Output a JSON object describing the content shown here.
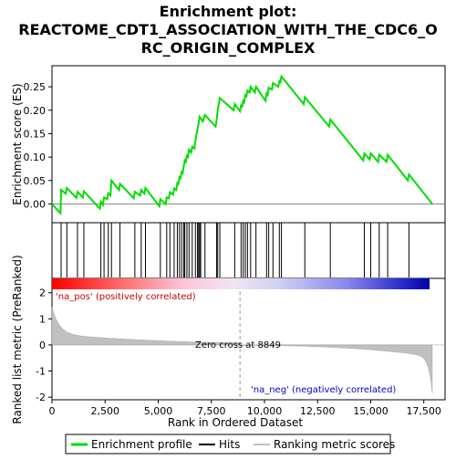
{
  "chart_data": {
    "type": "line",
    "title_lines": [
      "Enrichment plot:",
      "REACTOME_CDT1_ASSOCIATION_WITH_THE_CDC6_O",
      "RC_ORIGIN_COMPLEX"
    ],
    "top_ylabel": "Enrichment score (ES)",
    "bottom_ylabel": "Ranked list metric (PreRanked)",
    "xlabel": "Rank in Ordered Dataset",
    "xlim": [
      0,
      18500
    ],
    "top_ylim": [
      -0.04,
      0.295
    ],
    "bottom_ylim": [
      -2.1,
      2.55
    ],
    "x_ticks": [
      0,
      2500,
      5000,
      7500,
      10000,
      12500,
      15000,
      17500
    ],
    "x_tick_labels": [
      "0",
      "2,500",
      "5,000",
      "7,500",
      "10,000",
      "12,500",
      "15,000",
      "17,500"
    ],
    "top_y_ticks": [
      0.0,
      0.05,
      0.1,
      0.15,
      0.2,
      0.25
    ],
    "top_y_tick_labels": [
      "0.00",
      "0.05",
      "0.10",
      "0.15",
      "0.20",
      "0.25"
    ],
    "bottom_y_ticks": [
      -2,
      -1,
      0,
      1,
      2
    ],
    "bottom_y_tick_labels": [
      "-2",
      "-1",
      "0",
      "1",
      "2"
    ],
    "zero_cross": 8849,
    "zero_cross_label": "Zero cross at 8849",
    "pos_label": "'na_pos' (positively correlated)",
    "neg_label": "'na_neg' (negatively correlated)",
    "legend": [
      {
        "label": "Enrichment profile",
        "color": "#00dd00"
      },
      {
        "label": "Hits",
        "color": "#000000"
      },
      {
        "label": "Ranking metric scores",
        "color": "#c0c0c0"
      }
    ],
    "colors": {
      "es_line": "#00dd00",
      "hits": "#000000",
      "metric_fill": "#c0c0c0",
      "pos_text": "#cc0000",
      "neg_text": "#0000cc"
    },
    "hits": [
      430,
      700,
      1200,
      1500,
      2300,
      2450,
      2650,
      2800,
      3200,
      3900,
      4200,
      4400,
      5100,
      5400,
      5550,
      5750,
      5900,
      6000,
      6100,
      6200,
      6250,
      6350,
      6450,
      6600,
      6750,
      6850,
      6900,
      6950,
      7000,
      7200,
      7750,
      7800,
      7900,
      8600,
      8900,
      9000,
      9100,
      9200,
      9350,
      9600,
      10100,
      10200,
      10400,
      10700,
      10800,
      11900,
      13100,
      14700,
      15000,
      15400,
      15800,
      16800
    ],
    "es_points": [
      [
        0,
        0.0
      ],
      [
        400,
        -0.02
      ],
      [
        430,
        0.03
      ],
      [
        650,
        0.022
      ],
      [
        700,
        0.034
      ],
      [
        1150,
        0.013
      ],
      [
        1200,
        0.026
      ],
      [
        1450,
        0.014
      ],
      [
        1500,
        0.027
      ],
      [
        2250,
        -0.01
      ],
      [
        2300,
        0.005
      ],
      [
        2400,
        -0.002
      ],
      [
        2450,
        0.014
      ],
      [
        2600,
        0.01
      ],
      [
        2650,
        0.023
      ],
      [
        2750,
        0.018
      ],
      [
        2800,
        0.05
      ],
      [
        3150,
        0.03
      ],
      [
        3200,
        0.043
      ],
      [
        3850,
        0.012
      ],
      [
        3900,
        0.026
      ],
      [
        4150,
        0.018
      ],
      [
        4200,
        0.03
      ],
      [
        4350,
        0.022
      ],
      [
        4400,
        0.034
      ],
      [
        5050,
        -0.005
      ],
      [
        5100,
        0.01
      ],
      [
        5350,
        0.0
      ],
      [
        5400,
        0.014
      ],
      [
        5500,
        0.012
      ],
      [
        5550,
        0.025
      ],
      [
        5700,
        0.02
      ],
      [
        5750,
        0.033
      ],
      [
        5850,
        0.03
      ],
      [
        5900,
        0.045
      ],
      [
        5950,
        0.043
      ],
      [
        6000,
        0.057
      ],
      [
        6050,
        0.055
      ],
      [
        6100,
        0.068
      ],
      [
        6150,
        0.066
      ],
      [
        6200,
        0.08
      ],
      [
        6250,
        0.093
      ],
      [
        6300,
        0.09
      ],
      [
        6350,
        0.103
      ],
      [
        6400,
        0.1
      ],
      [
        6450,
        0.116
      ],
      [
        6550,
        0.11
      ],
      [
        6600,
        0.122
      ],
      [
        6700,
        0.118
      ],
      [
        6750,
        0.135
      ],
      [
        6800,
        0.148
      ],
      [
        6850,
        0.16
      ],
      [
        6900,
        0.172
      ],
      [
        6950,
        0.186
      ],
      [
        7100,
        0.176
      ],
      [
        7200,
        0.19
      ],
      [
        7700,
        0.165
      ],
      [
        7750,
        0.18
      ],
      [
        7800,
        0.2
      ],
      [
        7900,
        0.226
      ],
      [
        8550,
        0.2
      ],
      [
        8600,
        0.213
      ],
      [
        8850,
        0.198
      ],
      [
        8900,
        0.21
      ],
      [
        8950,
        0.208
      ],
      [
        9000,
        0.22
      ],
      [
        9050,
        0.217
      ],
      [
        9100,
        0.232
      ],
      [
        9150,
        0.23
      ],
      [
        9200,
        0.242
      ],
      [
        9300,
        0.238
      ],
      [
        9350,
        0.25
      ],
      [
        9550,
        0.238
      ],
      [
        9600,
        0.25
      ],
      [
        10050,
        0.22
      ],
      [
        10100,
        0.236
      ],
      [
        10150,
        0.233
      ],
      [
        10200,
        0.248
      ],
      [
        10350,
        0.244
      ],
      [
        10400,
        0.258
      ],
      [
        10650,
        0.25
      ],
      [
        10700,
        0.262
      ],
      [
        10750,
        0.26
      ],
      [
        10800,
        0.272
      ],
      [
        11850,
        0.213
      ],
      [
        11900,
        0.228
      ],
      [
        13050,
        0.165
      ],
      [
        13100,
        0.18
      ],
      [
        14650,
        0.093
      ],
      [
        14700,
        0.108
      ],
      [
        14950,
        0.095
      ],
      [
        15000,
        0.108
      ],
      [
        15350,
        0.09
      ],
      [
        15400,
        0.105
      ],
      [
        15750,
        0.09
      ],
      [
        15800,
        0.105
      ],
      [
        16750,
        0.05
      ],
      [
        16800,
        0.063
      ],
      [
        17900,
        0.0
      ]
    ]
  }
}
